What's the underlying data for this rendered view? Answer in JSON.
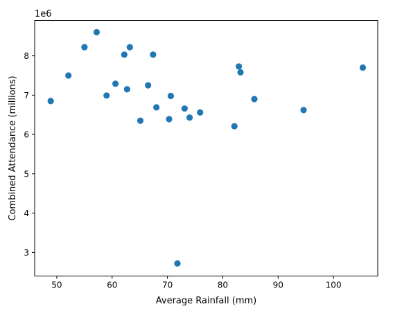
{
  "chart_data": {
    "type": "scatter",
    "title": "",
    "xlabel": "Average Rainfall (mm)",
    "ylabel": "Combined Attendance (millions)",
    "offset_text": "1e6",
    "xlim": [
      46,
      108
    ],
    "ylim": [
      2400000,
      8900000
    ],
    "xticks": [
      50,
      60,
      70,
      80,
      90,
      100
    ],
    "xtick_labels": [
      "50",
      "60",
      "70",
      "80",
      "90",
      "100"
    ],
    "yticks": [
      3000000,
      4000000,
      5000000,
      6000000,
      7000000,
      8000000
    ],
    "ytick_labels": [
      "3",
      "4",
      "5",
      "6",
      "7",
      "8"
    ],
    "grid": false,
    "colors": {
      "marker": "#1f77b4",
      "axes": "#000000"
    },
    "points": [
      {
        "x": 48.9,
        "y": 6850000
      },
      {
        "x": 52.1,
        "y": 7500000
      },
      {
        "x": 55.0,
        "y": 8220000
      },
      {
        "x": 57.2,
        "y": 8600000
      },
      {
        "x": 59.0,
        "y": 6990000
      },
      {
        "x": 60.6,
        "y": 7290000
      },
      {
        "x": 62.2,
        "y": 8030000
      },
      {
        "x": 62.7,
        "y": 7150000
      },
      {
        "x": 63.2,
        "y": 8220000
      },
      {
        "x": 65.1,
        "y": 6350000
      },
      {
        "x": 66.5,
        "y": 7250000
      },
      {
        "x": 67.4,
        "y": 8030000
      },
      {
        "x": 68.0,
        "y": 6690000
      },
      {
        "x": 70.3,
        "y": 6390000
      },
      {
        "x": 70.6,
        "y": 6980000
      },
      {
        "x": 71.8,
        "y": 2720000
      },
      {
        "x": 73.1,
        "y": 6660000
      },
      {
        "x": 74.0,
        "y": 6430000
      },
      {
        "x": 75.9,
        "y": 6560000
      },
      {
        "x": 82.1,
        "y": 6210000
      },
      {
        "x": 82.9,
        "y": 7730000
      },
      {
        "x": 83.2,
        "y": 7580000
      },
      {
        "x": 85.7,
        "y": 6900000
      },
      {
        "x": 94.6,
        "y": 6620000
      },
      {
        "x": 105.3,
        "y": 7700000
      }
    ]
  }
}
